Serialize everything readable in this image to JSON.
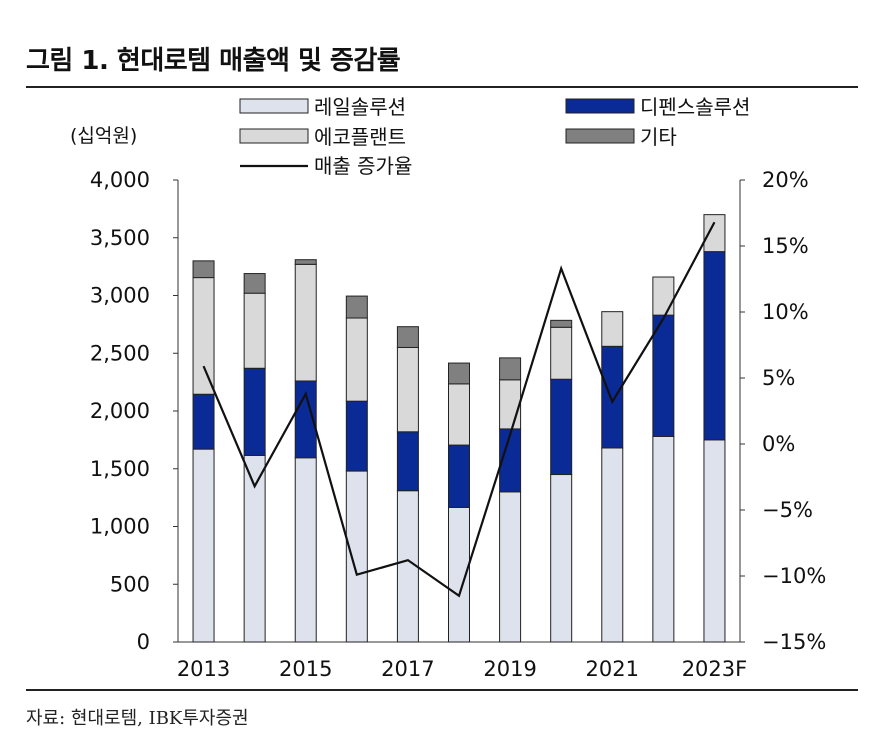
{
  "title": "그림 1. 현대로템 매출액 및 증감률",
  "source": "자료: 현대로템, IBK투자증권",
  "colors": {
    "rail": "#dde2ec",
    "defense": "#0a2a96",
    "eco": "#d9d9d9",
    "other": "#808080",
    "line": "#111111"
  },
  "chart_data": {
    "type": "bar",
    "stacked": true,
    "unit_label": "(십억원)",
    "categories": [
      "2013",
      "2014",
      "2015",
      "2016",
      "2017",
      "2018",
      "2019",
      "2020",
      "2021",
      "2022",
      "2023F"
    ],
    "x_tick_labels": [
      "2013",
      "2015",
      "2017",
      "2019",
      "2021",
      "2023F"
    ],
    "y_left": {
      "ylim": [
        0,
        4000
      ],
      "ticks": [
        "0",
        "500",
        "1,000",
        "1,500",
        "2,000",
        "2,500",
        "3,000",
        "3,500",
        "4,000"
      ]
    },
    "y_right": {
      "ylim": [
        -15,
        20
      ],
      "ticks": [
        "-15%",
        "-10%",
        "-5%",
        "0%",
        "5%",
        "10%",
        "15%",
        "20%"
      ]
    },
    "series": [
      {
        "name": "레일솔루션",
        "key": "rail",
        "values": [
          1670,
          1615,
          1595,
          1480,
          1310,
          1165,
          1300,
          1450,
          1680,
          1780,
          1750
        ]
      },
      {
        "name": "디펜스솔루션",
        "key": "defense",
        "values": [
          475,
          755,
          665,
          605,
          510,
          540,
          545,
          825,
          880,
          1050,
          1630
        ]
      },
      {
        "name": "에코플랜트",
        "key": "eco",
        "values": [
          1010,
          650,
          1010,
          720,
          730,
          530,
          425,
          450,
          300,
          330,
          320
        ]
      },
      {
        "name": "기타",
        "key": "other",
        "values": [
          145,
          170,
          40,
          190,
          180,
          180,
          190,
          60,
          0,
          0,
          0
        ]
      }
    ],
    "line_series": {
      "name": "매출 증가율",
      "axis": "right",
      "values": [
        5.9,
        -3.2,
        3.8,
        -9.9,
        -8.8,
        -11.5,
        0.7,
        13.3,
        3.2,
        9.5,
        16.8
      ]
    },
    "legend": [
      "레일솔루션",
      "디펜스솔루션",
      "에코플랜트",
      "기타",
      "매출 증가율"
    ],
    "legend_position": "top"
  }
}
